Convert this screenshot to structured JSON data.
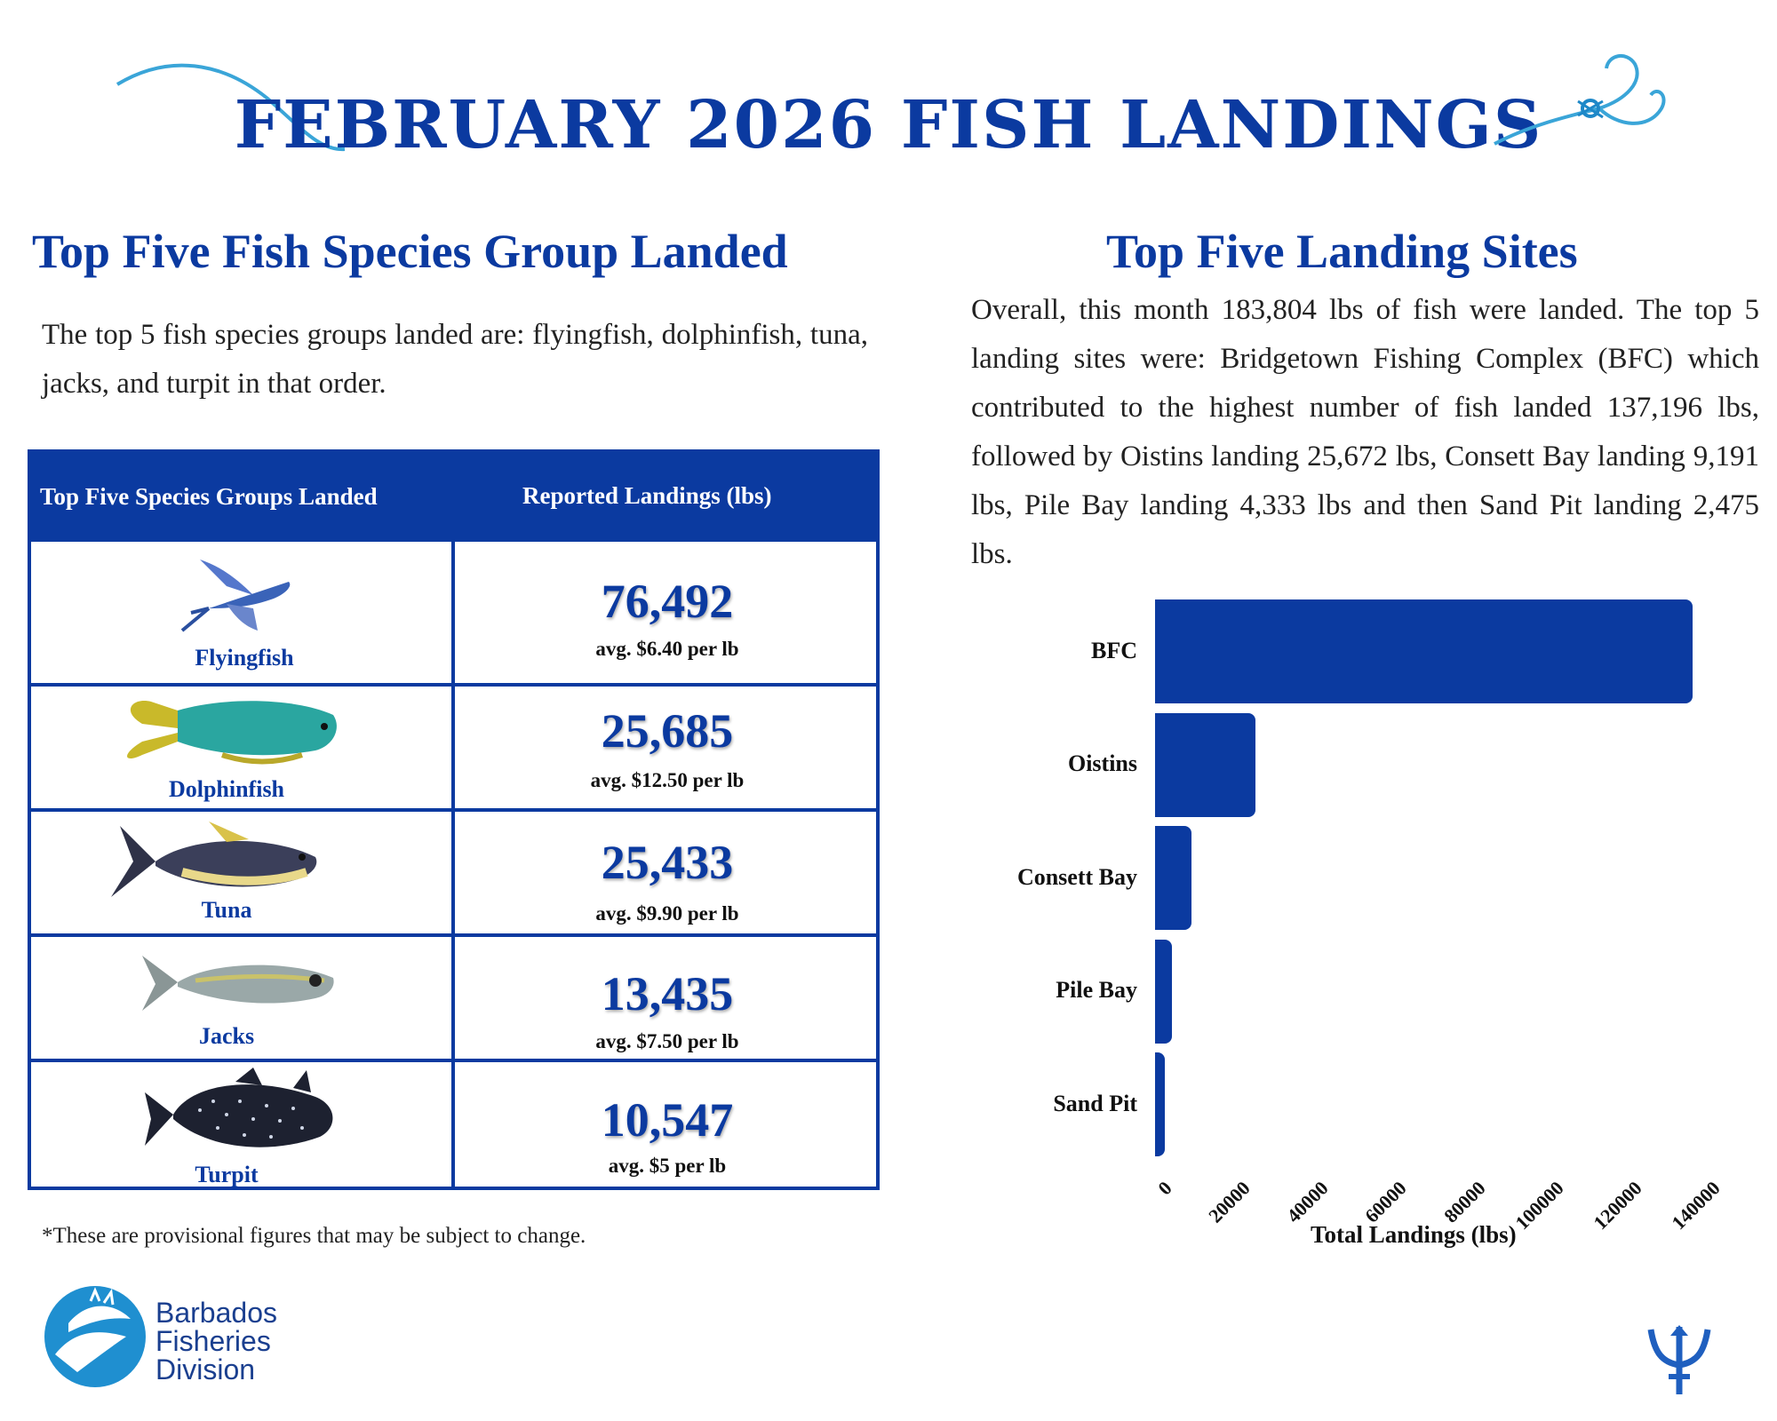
{
  "title": "FEBRUARY 2026 FISH LANDINGS",
  "left_section": {
    "title": "Top Five Fish Species Group Landed",
    "paragraph": "The top 5 fish species groups landed are: flyingfish, dolphinfish, tuna, jacks, and turpit in that order."
  },
  "table": {
    "col1_header": "Top Five Species Groups Landed",
    "col2_header": "Reported Landings (lbs)",
    "rows": [
      {
        "species": "Flyingfish",
        "landings": "76,492",
        "avg": "avg. $6.40 per lb"
      },
      {
        "species": "Dolphinfish",
        "landings": "25,685",
        "avg": "avg. $12.50 per lb"
      },
      {
        "species": "Tuna",
        "landings": "25,433",
        "avg": "avg. $9.90 per lb"
      },
      {
        "species": "Jacks",
        "landings": "13,435",
        "avg": "avg. $7.50 per lb"
      },
      {
        "species": "Turpit",
        "landings": "10,547",
        "avg": "avg. $5 per lb"
      }
    ]
  },
  "footnote": "*These are provisional figures that may be subject to change.",
  "right_section": {
    "title": "Top Five Landing Sites",
    "paragraph": "Overall, this month 183,804 lbs of fish were landed. The top 5 landing sites were: Bridgetown Fishing Complex (BFC) which contributed to the highest number of fish landed 137,196 lbs, followed by Oistins landing 25,672 lbs, Consett Bay landing 9,191 lbs, Pile Bay landing 4,333 lbs and then Sand Pit landing 2,475 lbs."
  },
  "chart_data": {
    "type": "bar",
    "orientation": "horizontal",
    "categories": [
      "BFC",
      "Oistins",
      "Consett Bay",
      "Pile Bay",
      "Sand Pit"
    ],
    "values": [
      137196,
      25672,
      9191,
      4333,
      2475
    ],
    "xlabel": "Total Landings (lbs)",
    "ylabel": "",
    "xlim": [
      0,
      140000
    ],
    "xticks": [
      "0",
      "20000",
      "40000",
      "60000",
      "80000",
      "100000",
      "120000",
      "140000"
    ],
    "bar_color": "#0b3aa0",
    "grid": false
  },
  "logo": {
    "line1": "Barbados",
    "line2": "Fisheries",
    "line3": "Division"
  },
  "colors": {
    "primary": "#0b3aa0",
    "accent": "#3aa5d8"
  },
  "icons": {
    "top_left": "fishing-line-icon",
    "top_right": "fishing-hook-icon",
    "bottom_right": "trident-icon"
  }
}
